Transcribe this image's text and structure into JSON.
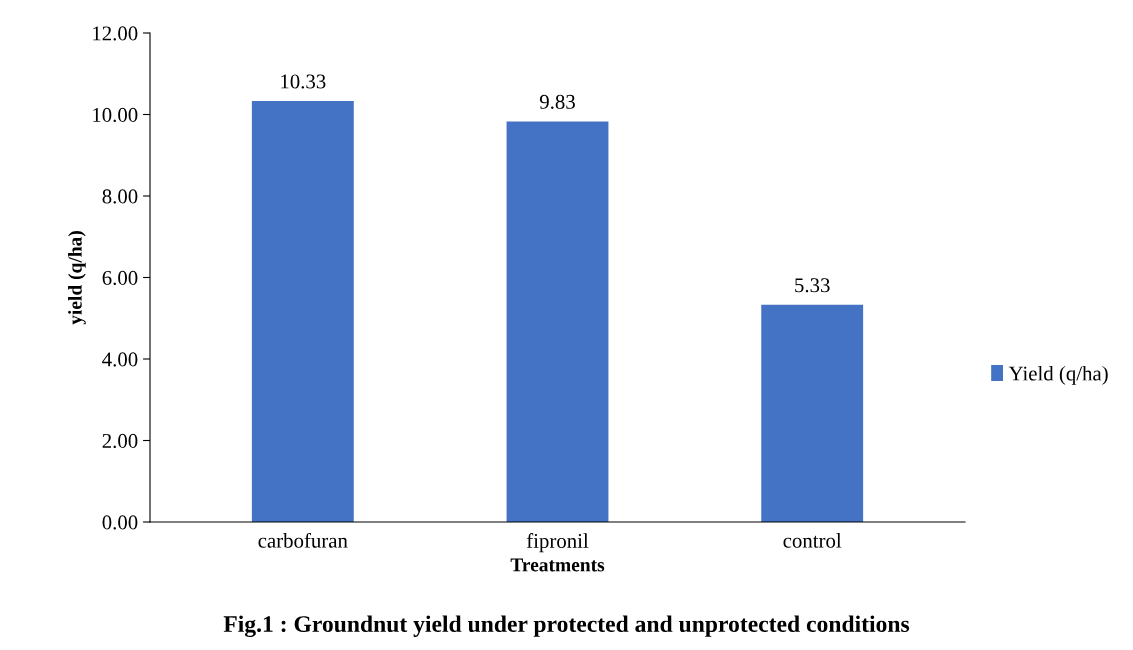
{
  "chart_data": {
    "type": "bar",
    "title": "Fig.1 : Groundnut yield under protected and unprotected conditions",
    "xlabel": "Treatments",
    "ylabel": "yield (q/ha)",
    "categories": [
      "carbofuran",
      "fipronil",
      "control"
    ],
    "series": [
      {
        "name": "Yield (q/ha)",
        "color": "#4472c4",
        "values": [
          10.33,
          9.83,
          5.33
        ]
      }
    ],
    "value_labels": [
      "10.33",
      "9.83",
      "5.33"
    ],
    "ylim": [
      0,
      12
    ],
    "yticks": [
      {
        "value": 0,
        "label": "0.00"
      },
      {
        "value": 2,
        "label": "2.00"
      },
      {
        "value": 4,
        "label": "4.00"
      },
      {
        "value": 6,
        "label": "6.00"
      },
      {
        "value": 8,
        "label": "8.00"
      },
      {
        "value": 10,
        "label": "10.00"
      },
      {
        "value": 12,
        "label": "12.00"
      }
    ],
    "legend": "right",
    "grid": false
  }
}
